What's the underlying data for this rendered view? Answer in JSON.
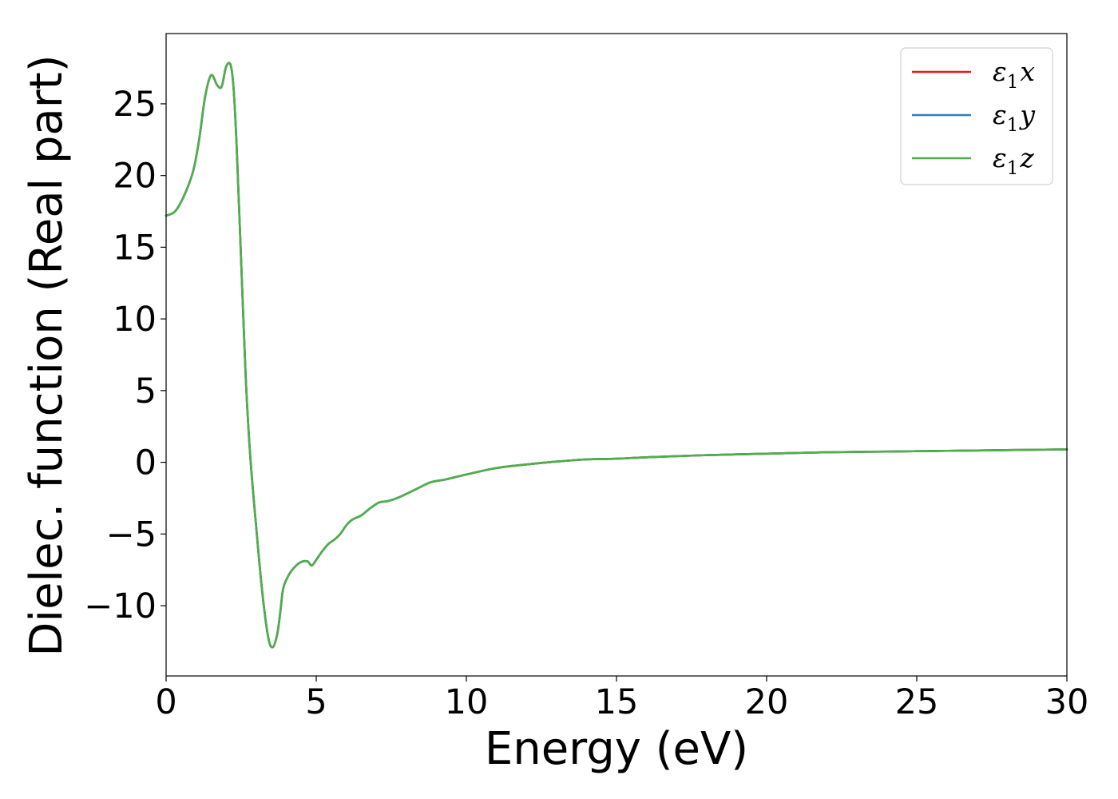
{
  "chart_data": {
    "type": "line",
    "xlabel": "Energy (eV)",
    "ylabel": "Dielec. function (Real part)",
    "xlim": [
      0,
      30
    ],
    "ylim": [
      -14.9,
      29.9
    ],
    "xticks": [
      0,
      5,
      10,
      15,
      20,
      25,
      30
    ],
    "xtick_labels": [
      "0",
      "5",
      "10",
      "15",
      "20",
      "25",
      "30"
    ],
    "yticks": [
      -10,
      -5,
      0,
      5,
      10,
      15,
      20,
      25
    ],
    "ytick_labels": [
      "−10",
      "−5",
      "0",
      "5",
      "10",
      "15",
      "20",
      "25"
    ],
    "grid": false,
    "legend": {
      "position": "top-right",
      "entries": [
        {
          "symbol": "ε",
          "sub": "1",
          "var": "x"
        },
        {
          "symbol": "ε",
          "sub": "1",
          "var": "y"
        },
        {
          "symbol": "ε",
          "sub": "1",
          "var": "z"
        }
      ]
    },
    "x": [
      0,
      0.3,
      0.6,
      0.9,
      1.1,
      1.3,
      1.5,
      1.7,
      1.85,
      2.0,
      2.15,
      2.25,
      2.35,
      2.5,
      2.65,
      2.8,
      3.0,
      3.2,
      3.4,
      3.55,
      3.7,
      3.8,
      3.9,
      4.05,
      4.2,
      4.45,
      4.7,
      4.85,
      5.0,
      5.2,
      5.4,
      5.6,
      5.8,
      6.0,
      6.2,
      6.5,
      6.8,
      7.1,
      7.4,
      7.8,
      8.3,
      8.8,
      9.3,
      10.0,
      11.0,
      12.0,
      13.0,
      14.0,
      15.0,
      16.0,
      18.0,
      20.0,
      22.0,
      24.0,
      26.0,
      28.0,
      30.0
    ],
    "series": [
      {
        "name": "ε₁x",
        "color": "#e41a1c",
        "values": [
          17.2,
          17.5,
          18.6,
          20.3,
          22.5,
          25.5,
          27.0,
          26.3,
          26.2,
          27.6,
          27.7,
          26.0,
          22.0,
          14.0,
          6.0,
          0.5,
          -4.5,
          -9.0,
          -12.2,
          -12.9,
          -12.0,
          -10.5,
          -8.8,
          -8.0,
          -7.5,
          -7.0,
          -6.9,
          -7.2,
          -6.8,
          -6.2,
          -5.7,
          -5.4,
          -5.0,
          -4.4,
          -4.0,
          -3.7,
          -3.2,
          -2.8,
          -2.7,
          -2.4,
          -1.9,
          -1.4,
          -1.2,
          -0.85,
          -0.4,
          -0.15,
          0.05,
          0.2,
          0.25,
          0.35,
          0.5,
          0.6,
          0.7,
          0.75,
          0.8,
          0.85,
          0.9
        ]
      },
      {
        "name": "ε₁y",
        "color": "#377eb8",
        "values": [
          17.2,
          17.5,
          18.6,
          20.3,
          22.5,
          25.5,
          27.0,
          26.3,
          26.2,
          27.6,
          27.7,
          26.0,
          22.0,
          14.0,
          6.0,
          0.5,
          -4.5,
          -9.0,
          -12.2,
          -12.9,
          -12.0,
          -10.5,
          -8.8,
          -8.0,
          -7.5,
          -7.0,
          -6.9,
          -7.2,
          -6.8,
          -6.2,
          -5.7,
          -5.4,
          -5.0,
          -4.4,
          -4.0,
          -3.7,
          -3.2,
          -2.8,
          -2.7,
          -2.4,
          -1.9,
          -1.4,
          -1.2,
          -0.85,
          -0.4,
          -0.15,
          0.05,
          0.2,
          0.25,
          0.35,
          0.5,
          0.6,
          0.7,
          0.75,
          0.8,
          0.85,
          0.9
        ]
      },
      {
        "name": "ε₁z",
        "color": "#4daf4a",
        "values": [
          17.2,
          17.5,
          18.6,
          20.3,
          22.5,
          25.5,
          27.0,
          26.3,
          26.2,
          27.6,
          27.7,
          26.0,
          22.0,
          14.0,
          6.0,
          0.5,
          -4.5,
          -9.0,
          -12.2,
          -12.9,
          -12.0,
          -10.5,
          -8.8,
          -8.0,
          -7.5,
          -7.0,
          -6.9,
          -7.2,
          -6.8,
          -6.2,
          -5.7,
          -5.4,
          -5.0,
          -4.4,
          -4.0,
          -3.7,
          -3.2,
          -2.8,
          -2.7,
          -2.4,
          -1.9,
          -1.4,
          -1.2,
          -0.85,
          -0.4,
          -0.15,
          0.05,
          0.2,
          0.25,
          0.35,
          0.5,
          0.6,
          0.7,
          0.75,
          0.8,
          0.85,
          0.9
        ]
      }
    ]
  }
}
